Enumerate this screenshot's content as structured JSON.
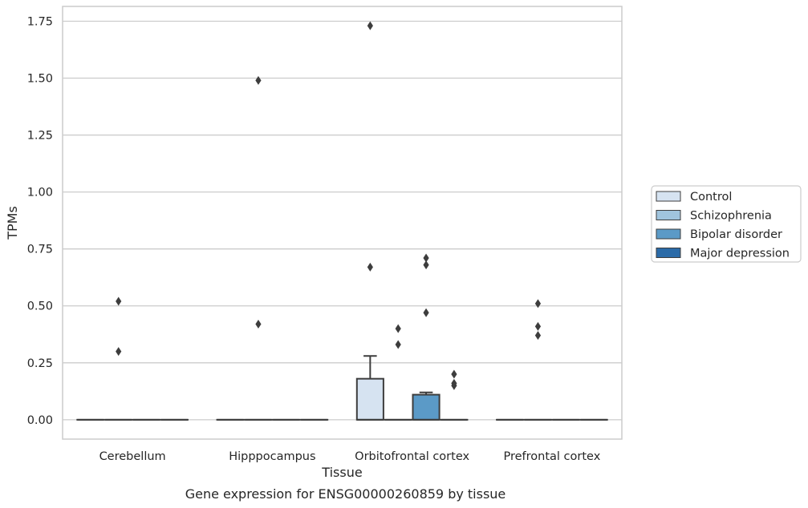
{
  "chart_data": {
    "type": "box",
    "caption": "Gene expression for ENSG00000260859 by tissue",
    "xlabel": "Tissue",
    "ylabel": "TPMs",
    "ylim": [
      -0.085,
      1.815
    ],
    "yticks": [
      0.0,
      0.25,
      0.5,
      0.75,
      1.0,
      1.25,
      1.5,
      1.75
    ],
    "ytick_labels": [
      "0.00",
      "0.25",
      "0.50",
      "0.75",
      "1.00",
      "1.25",
      "1.50",
      "1.75"
    ],
    "categories": [
      "Cerebellum",
      "Hipppocampus",
      "Orbitofrontal cortex",
      "Prefrontal cortex"
    ],
    "grid": "horizontal",
    "legend_position": "right",
    "series": [
      {
        "name": "Control",
        "color": "#d6e3f1",
        "boxes": [
          {
            "q1": 0,
            "median": 0,
            "q3": 0,
            "whisker_low": 0,
            "whisker_high": 0,
            "outliers": []
          },
          {
            "q1": 0,
            "median": 0,
            "q3": 0,
            "whisker_low": 0,
            "whisker_high": 0,
            "outliers": []
          },
          {
            "q1": 0,
            "median": 0,
            "q3": 0.18,
            "whisker_low": 0,
            "whisker_high": 0.28,
            "outliers": [
              0.67,
              1.73
            ]
          },
          {
            "q1": 0,
            "median": 0,
            "q3": 0,
            "whisker_low": 0,
            "whisker_high": 0,
            "outliers": []
          }
        ]
      },
      {
        "name": "Schizophrenia",
        "color": "#a0c4dd",
        "boxes": [
          {
            "q1": 0,
            "median": 0,
            "q3": 0,
            "whisker_low": 0,
            "whisker_high": 0,
            "outliers": [
              0.3,
              0.52
            ]
          },
          {
            "q1": 0,
            "median": 0,
            "q3": 0,
            "whisker_low": 0,
            "whisker_high": 0,
            "outliers": [
              0.42,
              1.49
            ]
          },
          {
            "q1": 0,
            "median": 0,
            "q3": 0,
            "whisker_low": 0,
            "whisker_high": 0,
            "outliers": [
              0.33,
              0.4
            ]
          },
          {
            "q1": 0,
            "median": 0,
            "q3": 0,
            "whisker_low": 0,
            "whisker_high": 0,
            "outliers": [
              0.37,
              0.41,
              0.51
            ]
          }
        ]
      },
      {
        "name": "Bipolar disorder",
        "color": "#5b9ac7",
        "boxes": [
          {
            "q1": 0,
            "median": 0,
            "q3": 0,
            "whisker_low": 0,
            "whisker_high": 0,
            "outliers": []
          },
          {
            "q1": 0,
            "median": 0,
            "q3": 0,
            "whisker_low": 0,
            "whisker_high": 0,
            "outliers": []
          },
          {
            "q1": 0,
            "median": 0,
            "q3": 0.11,
            "whisker_low": 0,
            "whisker_high": 0.12,
            "outliers": [
              0.47,
              0.68,
              0.71
            ]
          },
          {
            "q1": 0,
            "median": 0,
            "q3": 0,
            "whisker_low": 0,
            "whisker_high": 0,
            "outliers": []
          }
        ]
      },
      {
        "name": "Major depression",
        "color": "#2b6ba8",
        "boxes": [
          {
            "q1": 0,
            "median": 0,
            "q3": 0,
            "whisker_low": 0,
            "whisker_high": 0,
            "outliers": []
          },
          {
            "q1": 0,
            "median": 0,
            "q3": 0,
            "whisker_low": 0,
            "whisker_high": 0,
            "outliers": []
          },
          {
            "q1": 0,
            "median": 0,
            "q3": 0,
            "whisker_low": 0,
            "whisker_high": 0,
            "outliers": [
              0.15,
              0.16,
              0.2
            ]
          },
          {
            "q1": 0,
            "median": 0,
            "q3": 0,
            "whisker_low": 0,
            "whisker_high": 0,
            "outliers": []
          }
        ]
      }
    ]
  }
}
